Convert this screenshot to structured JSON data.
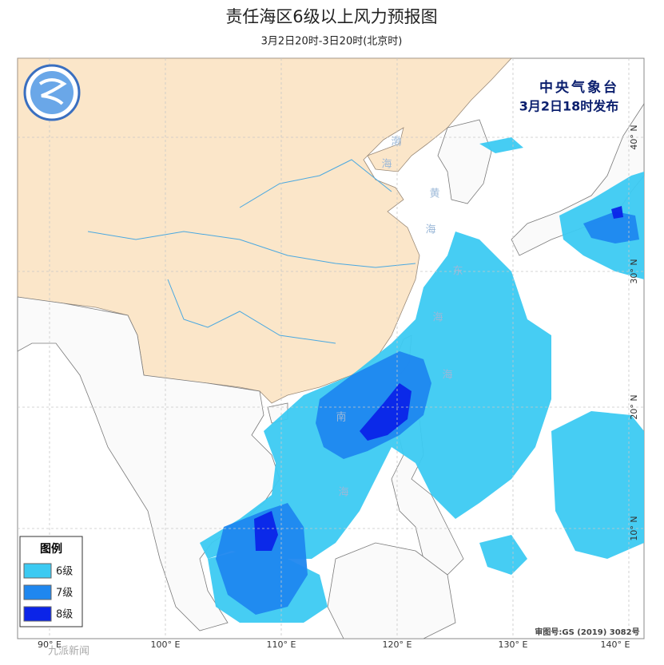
{
  "header": {
    "title": "责任海区6级以上风力预报图",
    "subtitle": "3月2日20时-3日20时(北京时)",
    "issuer": "中央气象台",
    "issued": "3月2日18时发布"
  },
  "legend": {
    "title": "图例",
    "items": [
      {
        "label": "6级",
        "color": "#3ccaf2"
      },
      {
        "label": "7级",
        "color": "#1f87ef"
      },
      {
        "label": "8级",
        "color": "#0b24e8"
      }
    ]
  },
  "map": {
    "lon_labels": [
      "90° E",
      "100° E",
      "110° E",
      "120° E",
      "130° E",
      "140° E"
    ],
    "lat_labels": [
      "40° N",
      "30° N",
      "20° N",
      "10° N"
    ],
    "sea_labels": [
      "渤",
      "海",
      "黄",
      "海",
      "东",
      "海",
      "海",
      "南",
      "海"
    ]
  },
  "review_no": "审图号:GS (2019) 3082号",
  "watermark": "九派新闻"
}
